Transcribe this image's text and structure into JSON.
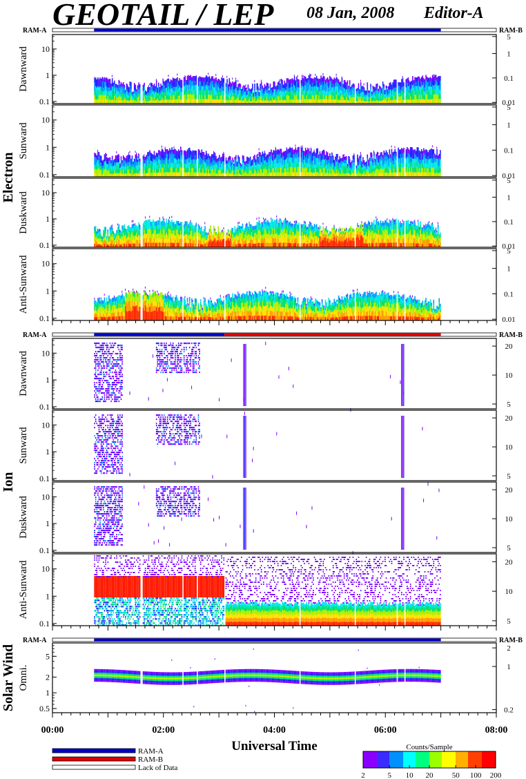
{
  "header": {
    "title": "GEOTAIL / LEP",
    "date": "08 Jan, 2008",
    "editor": "Editor-A"
  },
  "mode_bar": {
    "left_label": "RAM-A",
    "right_label": "RAM-B"
  },
  "groups": [
    {
      "name": "Electron",
      "panels": [
        "Dawnward",
        "Sunward",
        "Duskward",
        "Anti-Sunward"
      ]
    },
    {
      "name": "Ion",
      "panels": [
        "Dawnward",
        "Sunward",
        "Duskward",
        "Anti-Sunward"
      ]
    },
    {
      "name": "Solar Wind",
      "panels": [
        "Omni."
      ]
    }
  ],
  "legend": {
    "items": [
      {
        "label": "RAM-A",
        "color": "#0000cc"
      },
      {
        "label": "RAM-B",
        "color": "#dd0000"
      },
      {
        "label": "Lack of Data",
        "color": "#ffffff"
      }
    ]
  },
  "colorbar": {
    "title": "Counts/Sample",
    "ticks": [
      "2",
      "5",
      "10",
      "20",
      "50",
      "100",
      "200"
    ],
    "tick_values": [
      2,
      5,
      10,
      20,
      50,
      100,
      200
    ],
    "range": [
      2,
      200
    ],
    "scale": "log"
  },
  "chart_data": {
    "type": "heatmap",
    "xlabel": "Universal Time",
    "x_ticks": [
      "00:00",
      "02:00",
      "04:00",
      "06:00",
      "08:00"
    ],
    "x_range_hours": [
      0,
      8
    ],
    "data_coverage_hours": [
      0.75,
      7.0
    ],
    "panels": [
      {
        "group": "Electron",
        "name": "Dawnward",
        "y_scale": "log",
        "y_ticks": [
          "0.1",
          "1",
          "10"
        ],
        "y_tick_values": [
          0.1,
          1,
          10
        ],
        "right_ticks": [
          "5",
          "1",
          "0.1",
          "0.01"
        ],
        "right_tick_values": [
          5,
          1,
          0.1,
          0.01
        ],
        "mode_segments": [
          {
            "start": 0.75,
            "end": 7.0,
            "mode": "RAM-A"
          }
        ]
      },
      {
        "group": "Electron",
        "name": "Sunward",
        "y_scale": "log",
        "y_ticks": [
          "0.1",
          "1",
          "10"
        ],
        "y_tick_values": [
          0.1,
          1,
          10
        ],
        "right_ticks": [
          "5",
          "1",
          "0.1",
          "0.01"
        ],
        "right_tick_values": [
          5,
          1,
          0.1,
          0.01
        ]
      },
      {
        "group": "Electron",
        "name": "Duskward",
        "y_scale": "log",
        "y_ticks": [
          "0.1",
          "1",
          "10"
        ],
        "y_tick_values": [
          0.1,
          1,
          10
        ],
        "right_ticks": [
          "5",
          "1",
          "0.1",
          "0.01"
        ],
        "right_tick_values": [
          5,
          1,
          0.1,
          0.01
        ]
      },
      {
        "group": "Electron",
        "name": "Anti-Sunward",
        "y_scale": "log",
        "y_ticks": [
          "0.1",
          "1",
          "10"
        ],
        "y_tick_values": [
          0.1,
          1,
          10
        ],
        "right_ticks": [
          "5",
          "1",
          "0.1",
          "0.01"
        ],
        "right_tick_values": [
          5,
          1,
          0.1,
          0.01
        ]
      },
      {
        "group": "Ion",
        "name": "Dawnward",
        "y_scale": "log",
        "y_ticks": [
          "0.1",
          "1",
          "10"
        ],
        "y_tick_values": [
          0.1,
          1,
          10
        ],
        "right_ticks": [
          "20",
          "10",
          "5"
        ],
        "right_tick_values": [
          20,
          10,
          5
        ],
        "mode_segments": [
          {
            "start": 0.75,
            "end": 3.1,
            "mode": "RAM-A"
          },
          {
            "start": 3.1,
            "end": 7.0,
            "mode": "RAM-B"
          }
        ]
      },
      {
        "group": "Ion",
        "name": "Sunward",
        "y_scale": "log",
        "y_ticks": [
          "0.1",
          "1",
          "10"
        ],
        "y_tick_values": [
          0.1,
          1,
          10
        ],
        "right_ticks": [
          "20",
          "10",
          "5"
        ],
        "right_tick_values": [
          20,
          10,
          5
        ]
      },
      {
        "group": "Ion",
        "name": "Duskward",
        "y_scale": "log",
        "y_ticks": [
          "0.1",
          "1",
          "10"
        ],
        "y_tick_values": [
          0.1,
          1,
          10
        ],
        "right_ticks": [
          "20",
          "10",
          "5"
        ],
        "right_tick_values": [
          20,
          10,
          5
        ]
      },
      {
        "group": "Ion",
        "name": "Anti-Sunward",
        "y_scale": "log",
        "y_ticks": [
          "0.1",
          "1",
          "10"
        ],
        "y_tick_values": [
          0.1,
          1,
          10
        ],
        "right_ticks": [
          "20",
          "10",
          "5"
        ],
        "right_tick_values": [
          20,
          10,
          5
        ]
      },
      {
        "group": "Solar Wind",
        "name": "Omni.",
        "y_scale": "log",
        "y_ticks": [
          "0.5",
          "1",
          "2",
          "5"
        ],
        "y_tick_values": [
          0.5,
          1,
          2,
          5
        ],
        "right_ticks": [
          "2",
          "1",
          "0.2"
        ],
        "right_tick_values": [
          2,
          1,
          0.2
        ],
        "mode_segments": [
          {
            "start": 0.75,
            "end": 7.0,
            "mode": "RAM-A"
          }
        ]
      }
    ]
  }
}
